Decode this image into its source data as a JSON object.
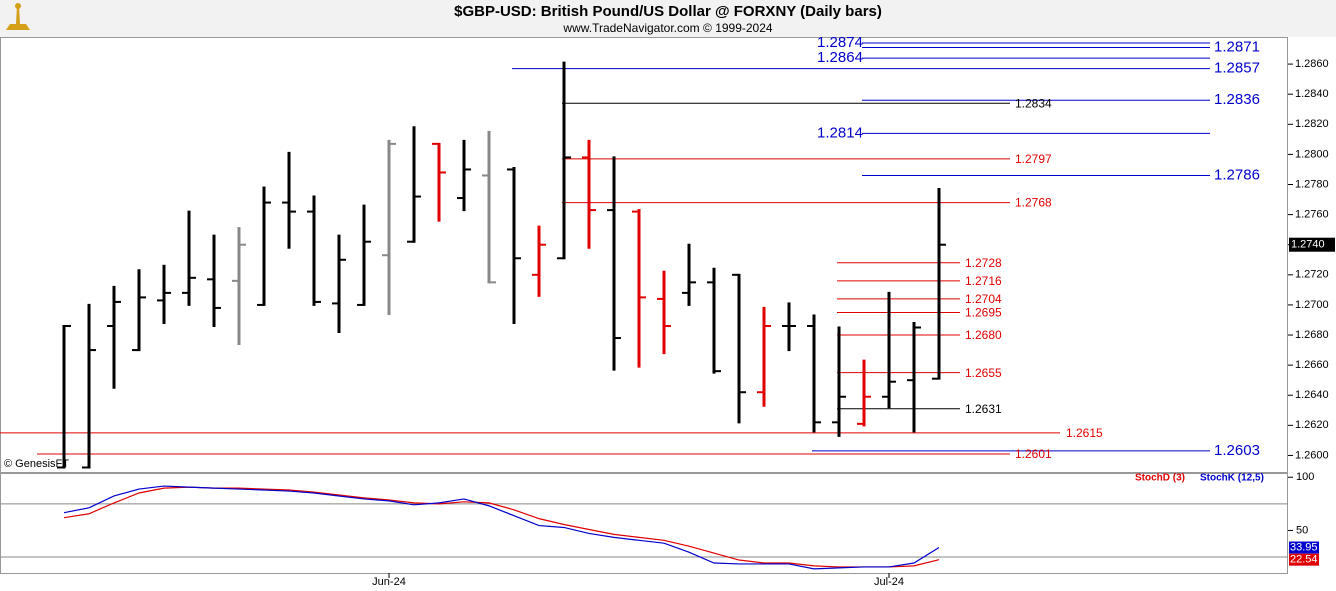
{
  "chart_data": [
    {
      "type": "ohlc",
      "title": "$GBP-USD:  British Pound/US Dollar @ FORXNY  (Daily bars)",
      "subtitle": "www.TradeNavigator.com © 1999-2024",
      "source": "© GenesisFT",
      "categories": [
        null,
        null,
        null,
        null,
        null,
        null,
        null,
        null,
        null,
        null,
        null,
        null,
        null,
        "Jun-24",
        null,
        null,
        null,
        null,
        null,
        null,
        null,
        null,
        null,
        null,
        null,
        null,
        null,
        null,
        null,
        null,
        null,
        null,
        null,
        "Jul-24",
        null,
        null
      ],
      "open": [
        1.2592,
        1.2592,
        1.2686,
        1.267,
        1.2703,
        1.2708,
        1.2717,
        1.2716,
        1.27,
        1.2768,
        1.2762,
        1.2701,
        1.27,
        1.2733,
        1.2742,
        1.2807,
        1.2771,
        1.2786,
        1.279,
        1.272,
        1.2731,
        1.2798,
        1.2763,
        1.2762,
        1.2704,
        1.2708,
        1.2715,
        1.272,
        1.2642,
        1.2686,
        1.2686,
        1.2622,
        1.2621,
        1.2639,
        1.265,
        1.2651
      ],
      "high": [
        1.2686,
        1.27,
        1.2712,
        1.2723,
        1.2726,
        1.2762,
        1.2746,
        1.2751,
        1.2778,
        1.2801,
        1.2772,
        1.2746,
        1.2766,
        1.2809,
        1.2818,
        1.2807,
        1.2809,
        1.2815,
        1.2791,
        1.2752,
        1.2861,
        1.2809,
        1.2798,
        1.2763,
        1.2722,
        1.274,
        1.2724,
        1.272,
        1.2698,
        1.2701,
        1.2693,
        1.2685,
        1.2663,
        1.2708,
        1.2688,
        1.2777
      ],
      "low": [
        1.2592,
        1.2592,
        1.2645,
        1.267,
        1.2688,
        1.27,
        1.2686,
        1.2674,
        1.27,
        1.2738,
        1.27,
        1.2682,
        1.27,
        1.2694,
        1.2742,
        1.2756,
        1.2763,
        1.2715,
        1.2688,
        1.2706,
        1.2731,
        1.2738,
        1.2657,
        1.2659,
        1.2668,
        1.27,
        1.2655,
        1.2622,
        1.2633,
        1.267,
        1.2616,
        1.2613,
        1.262,
        1.2632,
        1.2616,
        1.2651
      ],
      "close": [
        1.2686,
        1.267,
        1.2702,
        1.2705,
        1.2708,
        1.2718,
        1.2698,
        1.274,
        1.2768,
        1.2762,
        1.2702,
        1.273,
        1.2742,
        1.2807,
        1.2772,
        1.2788,
        1.279,
        1.2715,
        1.2731,
        1.274,
        1.2798,
        1.2763,
        1.2678,
        1.2705,
        1.2686,
        1.2715,
        1.2656,
        1.2642,
        1.2686,
        1.2686,
        1.2622,
        1.2639,
        1.2639,
        1.2649,
        1.2685,
        1.274
      ],
      "colors": [
        "#000",
        "#000",
        "#000",
        "#000",
        "#000",
        "#000",
        "#000",
        "#888",
        "#000",
        "#000",
        "#000",
        "#000",
        "#000",
        "#888",
        "#000",
        "#e00000",
        "#000",
        "#888",
        "#000",
        "#e00000",
        "#000",
        "#e00000",
        "#000",
        "#e00000",
        "#e00000",
        "#000",
        "#000",
        "#000",
        "#e00000",
        "#000",
        "#000",
        "#000",
        "#e00000",
        "#000",
        "#000",
        "#000"
      ],
      "ylim": [
        1.2589,
        1.2878
      ],
      "yticks": [
        {
          "value": 1.26,
          "label": "1.2600"
        },
        {
          "value": 1.262,
          "label": "1.2620"
        },
        {
          "value": 1.264,
          "label": "1.2640"
        },
        {
          "value": 1.266,
          "label": "1.2660"
        },
        {
          "value": 1.268,
          "label": "1.2680"
        },
        {
          "value": 1.27,
          "label": "1.2700"
        },
        {
          "value": 1.272,
          "label": "1.2720"
        },
        {
          "value": 1.274,
          "label": "1.2740"
        },
        {
          "value": 1.276,
          "label": "1.2760"
        },
        {
          "value": 1.278,
          "label": "1.2780"
        },
        {
          "value": 1.28,
          "label": "1.2800"
        },
        {
          "value": 1.282,
          "label": "1.2820"
        },
        {
          "value": 1.284,
          "label": "1.2840"
        },
        {
          "value": 1.286,
          "label": "1.2860"
        }
      ],
      "last_price": {
        "value": 1.274,
        "label": "1.2740"
      },
      "levels": [
        {
          "value": 1.2874,
          "color": "#0000cc"
        },
        {
          "value": 1.2871,
          "color": "#0000cc"
        },
        {
          "value": 1.2864,
          "color": "#0000cc"
        },
        {
          "value": 1.2857,
          "color": "#0000cc"
        },
        {
          "value": 1.2836,
          "color": "#0000cc"
        },
        {
          "value": 1.2834,
          "color": "#000000"
        },
        {
          "value": 1.2814,
          "color": "#0000cc"
        },
        {
          "value": 1.2797,
          "color": "#e00000"
        },
        {
          "value": 1.2786,
          "color": "#0000cc"
        },
        {
          "value": 1.2768,
          "color": "#e00000"
        },
        {
          "value": 1.2728,
          "color": "#e00000"
        },
        {
          "value": 1.2716,
          "color": "#e00000"
        },
        {
          "value": 1.2704,
          "color": "#e00000"
        },
        {
          "value": 1.2695,
          "color": "#e00000"
        },
        {
          "value": 1.268,
          "label": "1.2680",
          "color": "#e00000"
        },
        {
          "value": 1.2655,
          "color": "#e00000"
        },
        {
          "value": 1.2631,
          "color": "#000000"
        },
        {
          "value": 1.2615,
          "color": "#e00000"
        },
        {
          "value": 1.2603,
          "color": "#0000cc"
        },
        {
          "value": 1.2601,
          "color": "#e00000"
        }
      ]
    },
    {
      "type": "line",
      "series": [
        {
          "name": "StochD (3)",
          "color": "#e00000",
          "values": [
            62.0,
            65.7,
            75.9,
            85.2,
            89.8,
            90.7,
            89.8,
            89.8,
            88.9,
            88.0,
            86.1,
            83.3,
            80.6,
            78.7,
            75.9,
            75.0,
            76.9,
            75.9,
            69.4,
            61.1,
            55.6,
            50.9,
            46.3,
            43.5,
            40.7,
            35.2,
            28.7,
            22.2,
            19.4,
            19.4,
            16.7,
            15.7,
            15.7,
            15.7,
            16.7,
            22.54
          ]
        },
        {
          "name": "StochK (12,5)",
          "color": "#0000cc",
          "values": [
            66.7,
            71.3,
            82.4,
            88.9,
            91.7,
            90.7,
            89.8,
            88.9,
            88.0,
            87.0,
            85.2,
            82.4,
            79.6,
            77.8,
            74.1,
            75.9,
            79.6,
            73.1,
            63.9,
            54.6,
            52.8,
            47.2,
            43.5,
            40.7,
            38.0,
            29.6,
            19.4,
            18.5,
            18.5,
            18.5,
            13.9,
            14.8,
            15.7,
            15.7,
            19.4,
            33.95
          ]
        }
      ],
      "ylim": [
        10,
        104
      ],
      "yticks": [
        100,
        50
      ],
      "hlines": [
        75,
        25
      ]
    }
  ]
}
